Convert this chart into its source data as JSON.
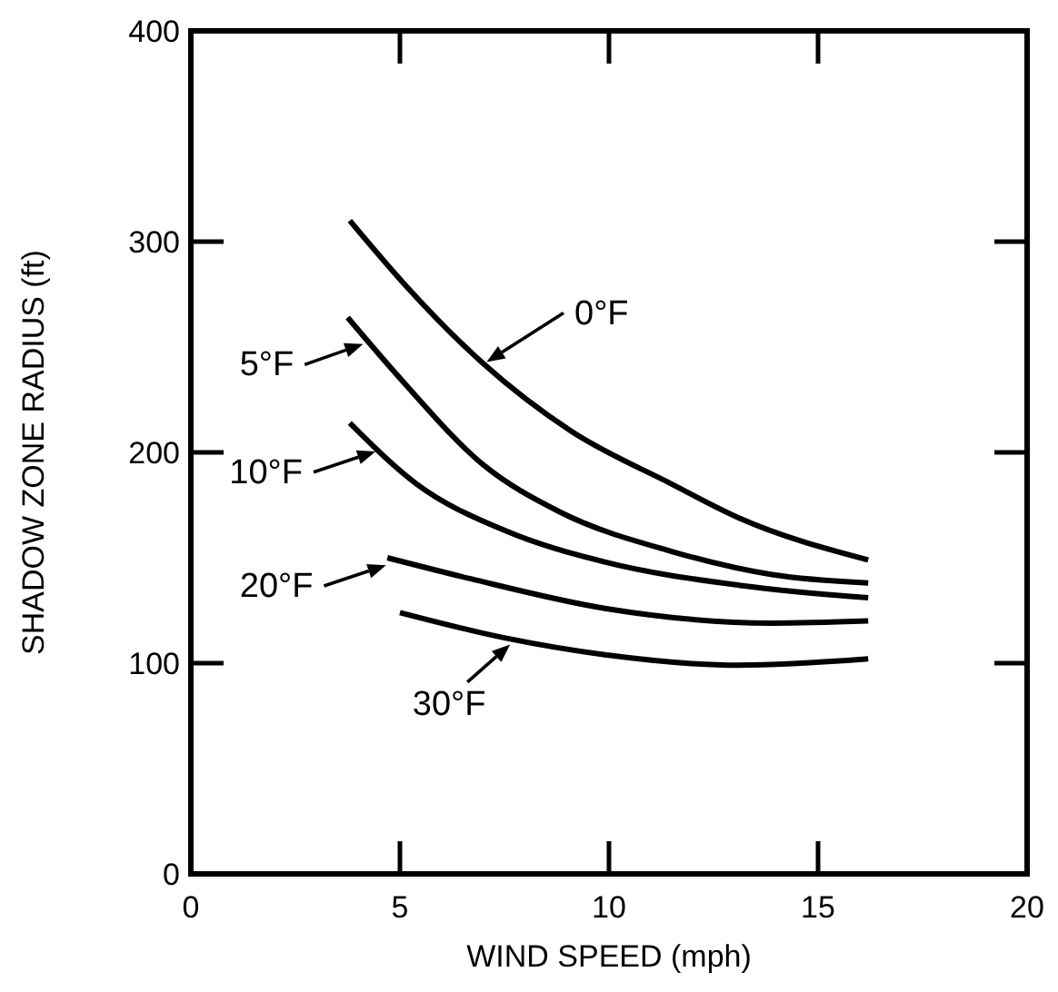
{
  "chart_data": {
    "type": "line",
    "xlabel": "WIND SPEED (mph)",
    "ylabel": "SHADOW ZONE RADIUS (ft)",
    "xlim": [
      0,
      20
    ],
    "xticks": [
      0,
      5,
      10,
      15,
      20
    ],
    "ylim": [
      0,
      400
    ],
    "yticks": [
      0,
      100,
      200,
      300,
      400
    ],
    "grid": false,
    "marker": "none",
    "line_style": "solid",
    "series": [
      {
        "color": "#000000",
        "x": [
          3.8,
          5.1,
          7.0,
          9.1,
          11.5,
          13.1,
          16.2
        ],
        "values": [
          310,
          280,
          242,
          210,
          185,
          169,
          149
        ]
      },
      {
        "color": "#000000",
        "x": [
          3.75,
          5.1,
          7.0,
          8.8,
          11.5,
          13.9,
          16.2
        ],
        "values": [
          264,
          233,
          194,
          172,
          153,
          142,
          138
        ]
      },
      {
        "color": "#000000",
        "x": [
          3.8,
          5.4,
          7.5,
          9.9,
          13.1,
          16.2
        ],
        "values": [
          214,
          185,
          163,
          148,
          137,
          131
        ]
      },
      {
        "color": "#000000",
        "x": [
          4.7,
          6.7,
          9.9,
          13.9,
          16.2
        ],
        "values": [
          150,
          140,
          126,
          119,
          120
        ]
      },
      {
        "color": "#000000",
        "x": [
          5.0,
          7.5,
          9.9,
          13.1,
          16.2
        ],
        "values": [
          124,
          112,
          104,
          99,
          102
        ]
      }
    ],
    "annotations": [
      {
        "text": "0°F",
        "x": 7.0,
        "y": 242
      },
      {
        "text": "5°F",
        "x": 4.2,
        "y": 252
      },
      {
        "text": "10°F",
        "x": 4.5,
        "y": 201
      },
      {
        "text": "20°F",
        "x": 4.75,
        "y": 147
      },
      {
        "text": "30°F",
        "x": 7.7,
        "y": 110
      }
    ]
  }
}
